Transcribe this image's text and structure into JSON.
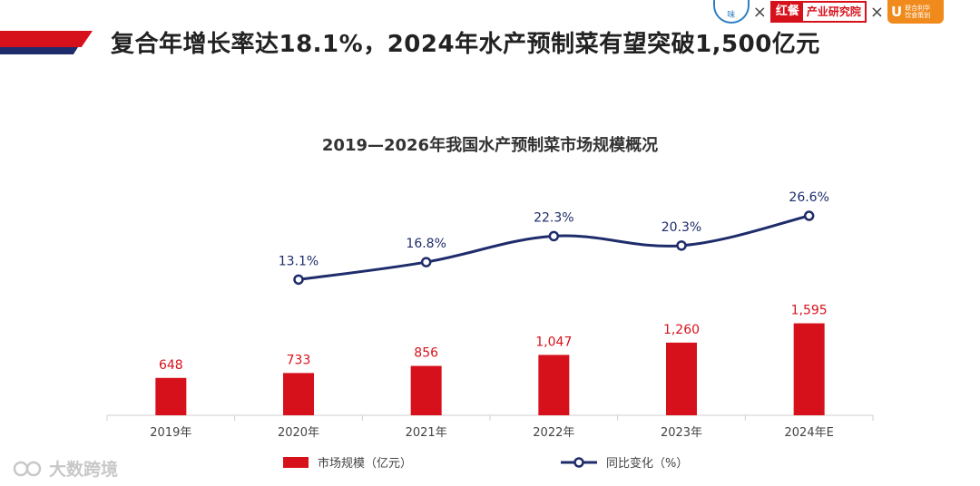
{
  "headline": "复合年增长率达18.1%，2024年水产预制菜有望突破1,500亿元",
  "logos": {
    "association_text": "味",
    "cross": "×",
    "hongcan_a": "红餐",
    "hongcan_b": "产业研究院",
    "orange_mark": "U",
    "orange_line1": "联合利华",
    "orange_line2": "饮食策划"
  },
  "watermark_brand": "大数跨境",
  "colors": {
    "bar": "#d7111b",
    "line": "#1e2c6b",
    "bar_label": "#d7111b",
    "line_label": "#1e2c6b"
  },
  "chart_data": {
    "type": "bar",
    "title": "2019—2026年我国水产预制菜市场规模概况",
    "categories": [
      "2019年",
      "2020年",
      "2021年",
      "2022年",
      "2023年",
      "2024年E"
    ],
    "series": [
      {
        "name": "市场规模（亿元）",
        "type": "bar",
        "values": [
          648,
          733,
          856,
          1047,
          1260,
          1595
        ],
        "labels": [
          "648",
          "733",
          "856",
          "1,047",
          "1,260",
          "1,595"
        ]
      },
      {
        "name": "同比变化（%）",
        "type": "line",
        "values": [
          null,
          13.1,
          16.8,
          22.3,
          20.3,
          26.6
        ],
        "labels": [
          "",
          "13.1%",
          "16.8%",
          "22.3%",
          "20.3%",
          "26.6%"
        ]
      }
    ],
    "legend_position": "bottom",
    "grid": false
  }
}
